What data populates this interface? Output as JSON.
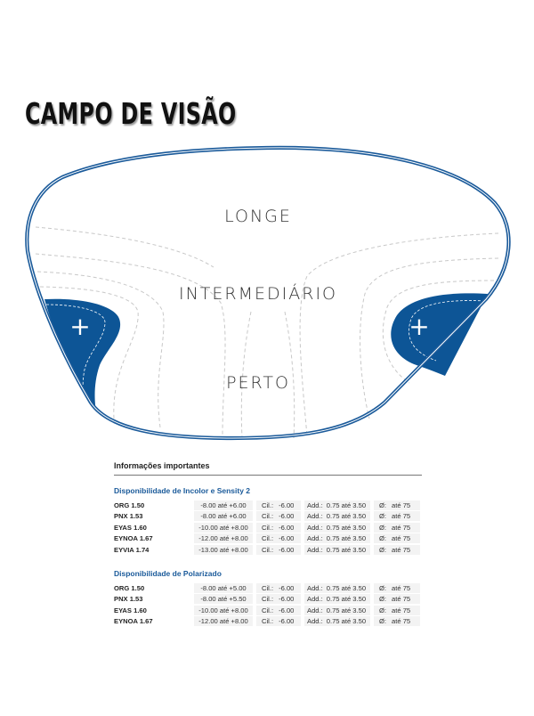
{
  "title": "CAMPO DE VISÃO",
  "diagram": {
    "zones": [
      "LONGE",
      "INTERMEDIÁRIO",
      "PERTO"
    ],
    "plus_symbol": "+",
    "colors": {
      "accent": "#0d5596",
      "outline": "#1a5a9a",
      "dashed": "#c8c8c8"
    }
  },
  "info": {
    "heading": "Informações importantes",
    "labels": {
      "cil": "Cil.:",
      "add": "Add.:",
      "dia": "Ø:"
    },
    "sections": [
      {
        "title": "Disponibilidade de Incolor e Sensity 2",
        "rows": [
          {
            "name": "ORG 1.50",
            "range": "-8.00 até +6.00",
            "cil": "-6.00",
            "add": "0.75 até 3.50",
            "dia": "até 75"
          },
          {
            "name": "PNX 1.53",
            "range": "-8.00 até +6.00",
            "cil": "-6.00",
            "add": "0.75 até 3.50",
            "dia": "até 75"
          },
          {
            "name": "EYAS 1.60",
            "range": "-10.00 até +8.00",
            "cil": "-6.00",
            "add": "0.75 até 3.50",
            "dia": "até 75"
          },
          {
            "name": "EYNOA 1.67",
            "range": "-12.00 até +8.00",
            "cil": "-6.00",
            "add": "0.75 até 3.50",
            "dia": "até 75"
          },
          {
            "name": "EYVIA 1.74",
            "range": "-13.00 até +8.00",
            "cil": "-6.00",
            "add": "0.75 até 3.50",
            "dia": "até 75"
          }
        ]
      },
      {
        "title": "Disponibilidade de Polarizado",
        "rows": [
          {
            "name": "ORG 1.50",
            "range": "-8.00 até +5.00",
            "cil": "-6.00",
            "add": "0.75 até 3.50",
            "dia": "até 75"
          },
          {
            "name": "PNX 1.53",
            "range": "-8.00 até +5.50",
            "cil": "-6.00",
            "add": "0.75 até 3.50",
            "dia": "até 75"
          },
          {
            "name": "EYAS 1.60",
            "range": "-10.00 até +8.00",
            "cil": "-6.00",
            "add": "0.75 até 3.50",
            "dia": "até 75"
          },
          {
            "name": "EYNOA 1.67",
            "range": "-12.00 até +8.00",
            "cil": "-6.00",
            "add": "0.75 até 3.50",
            "dia": "até 75"
          }
        ]
      }
    ]
  }
}
